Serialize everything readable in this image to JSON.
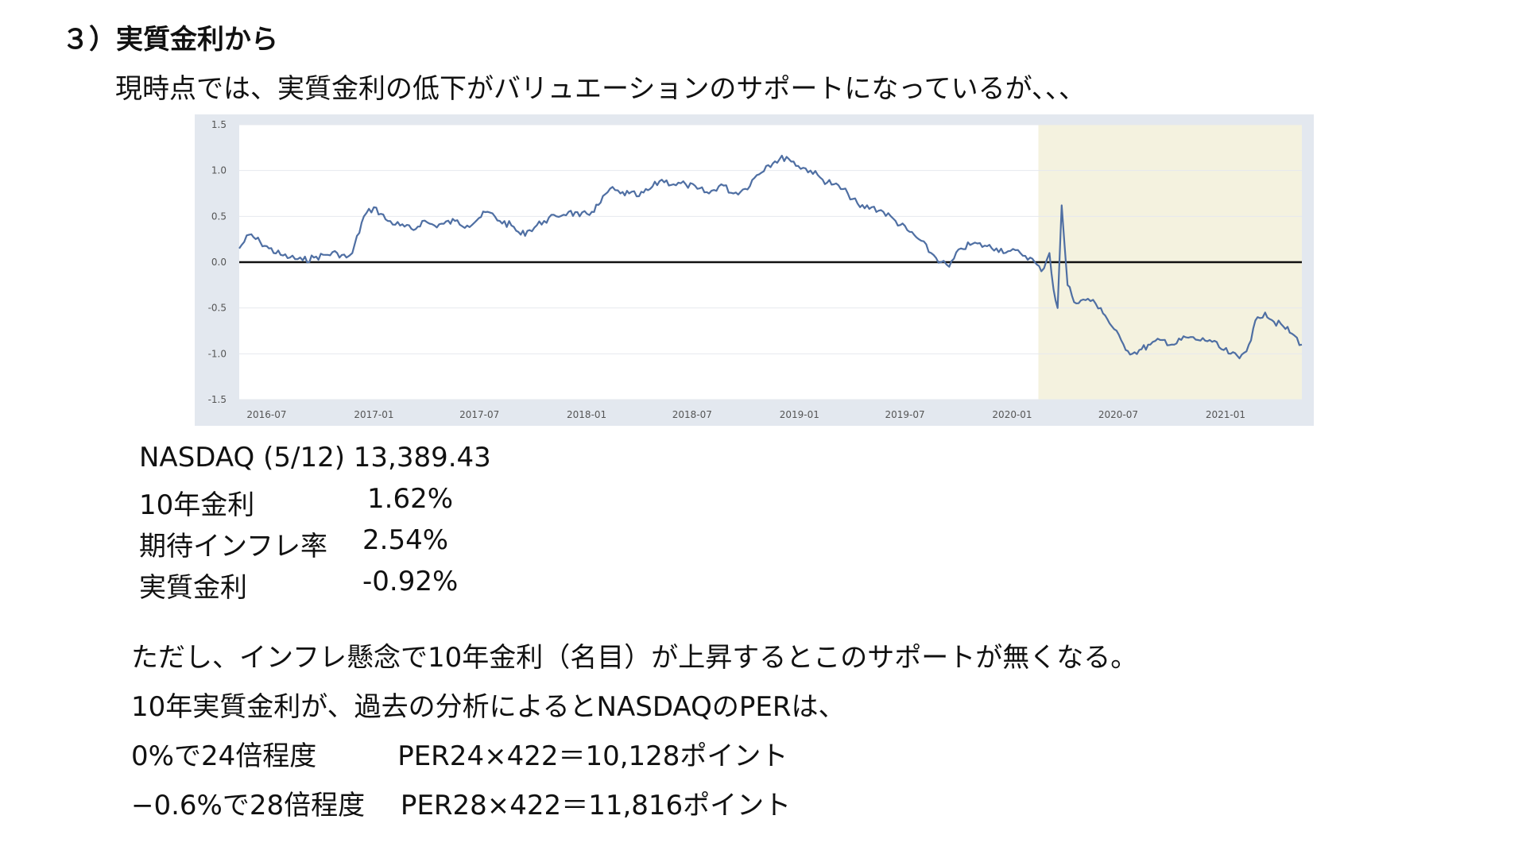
{
  "heading": "３）実質金利から",
  "intro": "現時点では、実質金利の低下がバリュエーションのサポートになっているが、、、",
  "chart_data": {
    "type": "line",
    "title": "",
    "xlabel": "",
    "ylabel": "",
    "ylim": [
      -1.5,
      1.5
    ],
    "yticks": [
      "1.5",
      "1.0",
      "0.5",
      "0.0",
      "-0.5",
      "-1.0",
      "-1.5"
    ],
    "xticks": [
      "2016-07",
      "2017-01",
      "2017-07",
      "2018-01",
      "2018-07",
      "2019-01",
      "2019-07",
      "2020-01",
      "2020-07",
      "2021-01"
    ],
    "x_range": [
      "2016-05-15",
      "2021-05-12"
    ],
    "zero_line": true,
    "shaded_region": {
      "start": "2020-02-15",
      "end": "2021-05-12",
      "color": "#f4f2df"
    },
    "line_color": "#4f6fa3",
    "series": [
      {
        "x": [
          "2016-05-15",
          "2016-06-01",
          "2016-06-20",
          "2016-07-05",
          "2016-07-25",
          "2016-08-10",
          "2016-09-01",
          "2016-09-20",
          "2016-10-10",
          "2016-10-30",
          "2016-11-15",
          "2016-11-25",
          "2016-12-15",
          "2017-01-01",
          "2017-01-25",
          "2017-02-15",
          "2017-03-10",
          "2017-03-25",
          "2017-04-15",
          "2017-05-01",
          "2017-05-20",
          "2017-06-10",
          "2017-06-30",
          "2017-07-15",
          "2017-08-05",
          "2017-08-25",
          "2017-09-10",
          "2017-09-25",
          "2017-10-20",
          "2017-11-10",
          "2017-12-01",
          "2017-12-20",
          "2018-01-10",
          "2018-01-25",
          "2018-02-10",
          "2018-02-28",
          "2018-03-15",
          "2018-04-01",
          "2018-04-20",
          "2018-05-10",
          "2018-05-30",
          "2018-06-20",
          "2018-07-10",
          "2018-07-30",
          "2018-08-20",
          "2018-09-10",
          "2018-09-30",
          "2018-10-20",
          "2018-11-05",
          "2018-11-20",
          "2018-12-10",
          "2018-12-30",
          "2019-01-20",
          "2019-02-10",
          "2019-03-01",
          "2019-03-25",
          "2019-04-15",
          "2019-05-05",
          "2019-05-25",
          "2019-06-15",
          "2019-07-05",
          "2019-07-25",
          "2019-08-15",
          "2019-09-01",
          "2019-09-15",
          "2019-10-05",
          "2019-10-25",
          "2019-11-15",
          "2019-12-05",
          "2019-12-25",
          "2020-01-15",
          "2020-02-01",
          "2020-02-20",
          "2020-03-05",
          "2020-03-12",
          "2020-03-19",
          "2020-03-26",
          "2020-04-05",
          "2020-04-20",
          "2020-05-10",
          "2020-06-01",
          "2020-06-20",
          "2020-07-10",
          "2020-07-25",
          "2020-08-10",
          "2020-08-25",
          "2020-09-15",
          "2020-10-05",
          "2020-10-25",
          "2020-11-15",
          "2020-12-05",
          "2020-12-25",
          "2021-01-10",
          "2021-01-25",
          "2021-02-10",
          "2021-02-25",
          "2021-03-10",
          "2021-03-25",
          "2021-04-10",
          "2021-04-25",
          "2021-05-12"
        ],
        "values": [
          0.15,
          0.3,
          0.22,
          0.15,
          0.08,
          0.05,
          0.02,
          0.05,
          0.08,
          0.1,
          0.05,
          0.1,
          0.5,
          0.6,
          0.45,
          0.4,
          0.35,
          0.45,
          0.4,
          0.42,
          0.45,
          0.4,
          0.48,
          0.55,
          0.45,
          0.4,
          0.3,
          0.35,
          0.45,
          0.5,
          0.55,
          0.5,
          0.55,
          0.65,
          0.8,
          0.75,
          0.75,
          0.72,
          0.8,
          0.9,
          0.85,
          0.85,
          0.8,
          0.75,
          0.85,
          0.75,
          0.8,
          0.95,
          1.05,
          1.1,
          1.15,
          1.05,
          1.0,
          0.9,
          0.85,
          0.75,
          0.6,
          0.6,
          0.55,
          0.45,
          0.35,
          0.25,
          0.1,
          0.0,
          -0.05,
          0.15,
          0.2,
          0.18,
          0.15,
          0.12,
          0.1,
          0.05,
          -0.1,
          0.1,
          -0.3,
          -0.5,
          0.62,
          -0.25,
          -0.45,
          -0.4,
          -0.5,
          -0.7,
          -0.9,
          -1.0,
          -0.95,
          -0.9,
          -0.85,
          -0.9,
          -0.82,
          -0.85,
          -0.85,
          -0.95,
          -1.0,
          -1.05,
          -0.9,
          -0.6,
          -0.55,
          -0.65,
          -0.7,
          -0.78,
          -0.9
        ]
      }
    ]
  },
  "stats": [
    {
      "label": "NASDAQ (5/12) 13,389.43",
      "value": ""
    },
    {
      "label": "10年金利",
      "value": "1.62%"
    },
    {
      "label": "期待インフレ率",
      "value": "2.54%"
    },
    {
      "label": "実質金利",
      "value": "-0.92%"
    }
  ],
  "notes": [
    "ただし、インフレ懸念で10年金利（名目）が上昇するとこのサポートが無くなる。",
    "10年実質金利が、過去の分析によるとNASDAQのPERは、",
    "0%で24倍程度　　　PER24×422＝10,128ポイント",
    "−0.6%で28倍程度　 PER28×422＝11,816ポイント"
  ]
}
